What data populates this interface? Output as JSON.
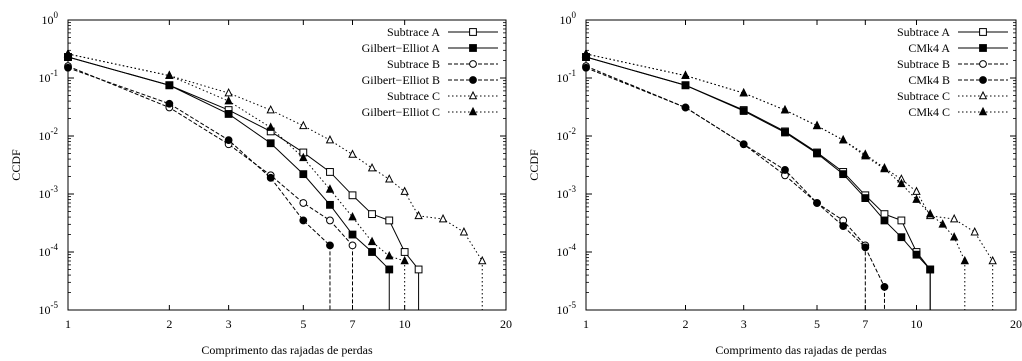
{
  "chart_data": [
    {
      "type": "line",
      "xlabel": "Comprimento das rajadas de perdas",
      "ylabel": "CCDF",
      "xscale": "log",
      "yscale": "log",
      "xlim": [
        1,
        20
      ],
      "ylim": [
        1e-05,
        1
      ],
      "xticks": [
        1,
        2,
        3,
        5,
        7,
        10,
        20
      ],
      "yticks": [
        {
          "value": 1,
          "base": "10",
          "exp": "0"
        },
        {
          "value": 0.1,
          "base": "10",
          "exp": "-1"
        },
        {
          "value": 0.01,
          "base": "10",
          "exp": "-2"
        },
        {
          "value": 0.001,
          "base": "10",
          "exp": "-3"
        },
        {
          "value": 0.0001,
          "base": "10",
          "exp": "-4"
        },
        {
          "value": 1e-05,
          "base": "10",
          "exp": "-5"
        }
      ],
      "legend_position": "top-right",
      "grid": false,
      "series": [
        {
          "name": "Subtrace A",
          "style": "solid",
          "marker": "square-open",
          "x": [
            1,
            2,
            3,
            4,
            5,
            6,
            7,
            8,
            9,
            10,
            11
          ],
          "y": [
            0.23,
            0.075,
            0.028,
            0.012,
            0.0052,
            0.0024,
            0.00095,
            0.00045,
            0.00035,
            0.0001,
            5e-05
          ],
          "drop_x": 11
        },
        {
          "name": "Gilbert−Elliot A",
          "style": "solid",
          "marker": "square-filled",
          "x": [
            1,
            2,
            3,
            4,
            5,
            6,
            7,
            8,
            9
          ],
          "y": [
            0.23,
            0.075,
            0.024,
            0.0075,
            0.0022,
            0.00065,
            0.0002,
            0.0001,
            5e-05
          ],
          "drop_x": 9
        },
        {
          "name": "Subtrace B",
          "style": "dashed",
          "marker": "circle-open",
          "x": [
            1,
            2,
            3,
            4,
            5,
            6,
            7
          ],
          "y": [
            0.16,
            0.031,
            0.0072,
            0.0021,
            0.0007,
            0.00035,
            0.00013
          ],
          "drop_x": 7
        },
        {
          "name": "Gilbert−Elliot B",
          "style": "dashed",
          "marker": "circle-filled",
          "x": [
            1,
            2,
            3,
            4,
            5,
            6
          ],
          "y": [
            0.15,
            0.036,
            0.0085,
            0.0019,
            0.00035,
            0.00013
          ],
          "drop_x": 6
        },
        {
          "name": "Subtrace C",
          "style": "dotted",
          "marker": "triangle-open",
          "x": [
            1,
            2,
            3,
            4,
            5,
            6,
            7,
            8,
            9,
            10,
            11,
            13,
            15,
            17
          ],
          "y": [
            0.26,
            0.11,
            0.055,
            0.028,
            0.015,
            0.0085,
            0.0048,
            0.0028,
            0.0018,
            0.0011,
            0.00042,
            0.00037,
            0.00022,
            7e-05
          ],
          "drop_x": 17
        },
        {
          "name": "Gilbert−Elliot C",
          "style": "dotted",
          "marker": "triangle-filled",
          "x": [
            1,
            2,
            3,
            4,
            5,
            6,
            7,
            8,
            9,
            10
          ],
          "y": [
            0.26,
            0.11,
            0.04,
            0.014,
            0.0042,
            0.0012,
            0.0004,
            0.00015,
            8.5e-05,
            7e-05
          ],
          "drop_x": 10
        }
      ]
    },
    {
      "type": "line",
      "xlabel": "Comprimento das rajadas de perdas",
      "ylabel": "CCDF",
      "xscale": "log",
      "yscale": "log",
      "xlim": [
        1,
        20
      ],
      "ylim": [
        1e-05,
        1
      ],
      "xticks": [
        1,
        2,
        3,
        5,
        7,
        10,
        20
      ],
      "yticks": [
        {
          "value": 1,
          "base": "10",
          "exp": "0"
        },
        {
          "value": 0.1,
          "base": "10",
          "exp": "-1"
        },
        {
          "value": 0.01,
          "base": "10",
          "exp": "-2"
        },
        {
          "value": 0.001,
          "base": "10",
          "exp": "-3"
        },
        {
          "value": 0.0001,
          "base": "10",
          "exp": "-4"
        },
        {
          "value": 1e-05,
          "base": "10",
          "exp": "-5"
        }
      ],
      "legend_position": "top-right",
      "grid": false,
      "series": [
        {
          "name": "Subtrace A",
          "style": "solid",
          "marker": "square-open",
          "x": [
            1,
            2,
            3,
            4,
            5,
            6,
            7,
            8,
            9,
            10,
            11
          ],
          "y": [
            0.23,
            0.075,
            0.028,
            0.012,
            0.0052,
            0.0024,
            0.00095,
            0.00045,
            0.00035,
            0.0001,
            5e-05
          ],
          "drop_x": 11
        },
        {
          "name": "CMk4 A",
          "style": "solid",
          "marker": "square-filled",
          "x": [
            1,
            2,
            3,
            4,
            5,
            6,
            7,
            8,
            9,
            10,
            11
          ],
          "y": [
            0.23,
            0.075,
            0.027,
            0.0115,
            0.005,
            0.0022,
            0.00085,
            0.00035,
            0.00018,
            9e-05,
            5e-05
          ],
          "drop_x": 11
        },
        {
          "name": "Subtrace B",
          "style": "dashed",
          "marker": "circle-open",
          "x": [
            1,
            2,
            3,
            4,
            5,
            6,
            7
          ],
          "y": [
            0.16,
            0.031,
            0.0072,
            0.0021,
            0.0007,
            0.00035,
            0.00013
          ],
          "drop_x": 7
        },
        {
          "name": "CMk4 B",
          "style": "dashed",
          "marker": "circle-filled",
          "x": [
            1,
            2,
            3,
            4,
            5,
            6,
            7,
            8
          ],
          "y": [
            0.15,
            0.031,
            0.0072,
            0.0026,
            0.0007,
            0.00028,
            0.00012,
            2.5e-05
          ],
          "drop_x": 8
        },
        {
          "name": "Subtrace C",
          "style": "dotted",
          "marker": "triangle-open",
          "x": [
            1,
            2,
            3,
            4,
            5,
            6,
            7,
            8,
            9,
            10,
            11,
            13,
            15,
            17
          ],
          "y": [
            0.26,
            0.11,
            0.055,
            0.028,
            0.015,
            0.0085,
            0.0048,
            0.0028,
            0.0018,
            0.0011,
            0.00042,
            0.00037,
            0.00022,
            7e-05
          ],
          "drop_x": 17
        },
        {
          "name": "CMk4 C",
          "style": "dotted",
          "marker": "triangle-filled",
          "x": [
            1,
            2,
            3,
            4,
            5,
            6,
            7,
            8,
            9,
            10,
            11,
            12,
            13,
            14
          ],
          "y": [
            0.26,
            0.11,
            0.055,
            0.028,
            0.015,
            0.0085,
            0.0045,
            0.0027,
            0.0015,
            0.0008,
            0.00045,
            0.0003,
            0.00018,
            7e-05
          ],
          "drop_x": 14
        }
      ]
    }
  ]
}
